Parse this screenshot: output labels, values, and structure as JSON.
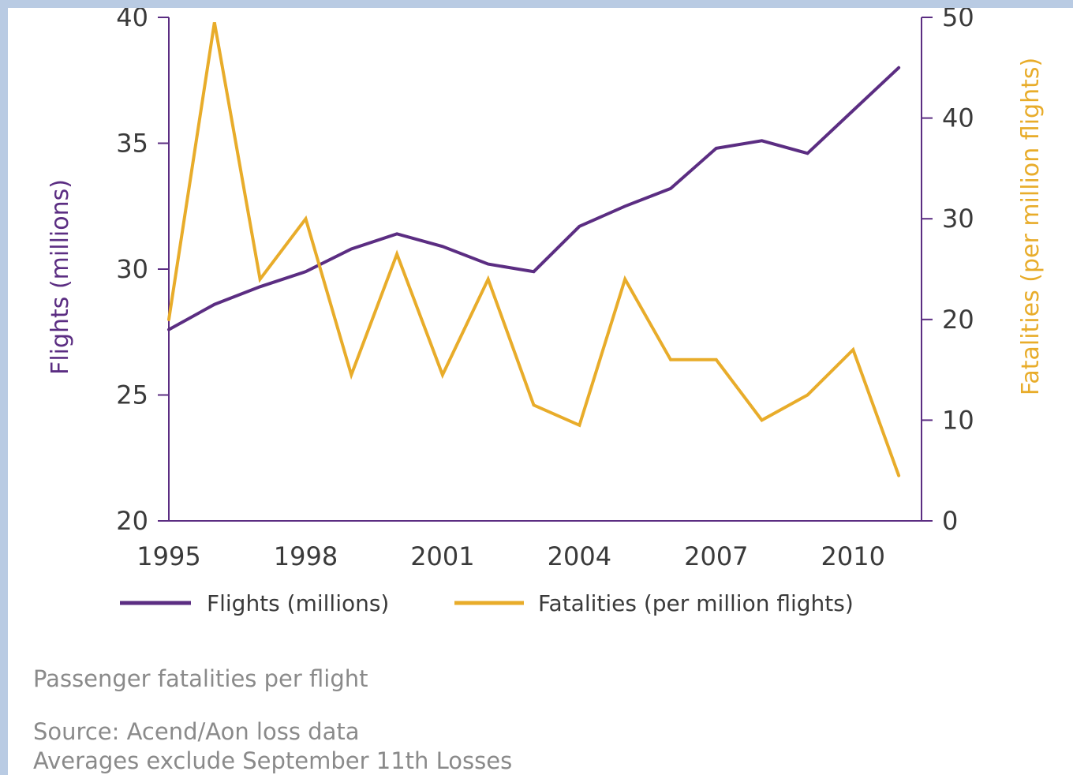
{
  "colors": {
    "flights": "#5b2d82",
    "fatalities": "#e8ac2a",
    "axis_left": "#5b2d82",
    "axis_right": "#5b2d82",
    "text": "#3a3a3a",
    "caption": "#8a8a8a"
  },
  "chart_data": {
    "type": "line",
    "title": "",
    "xlabel": "",
    "x": [
      1995,
      1996,
      1997,
      1998,
      1999,
      2000,
      2001,
      2002,
      2003,
      2004,
      2005,
      2006,
      2007,
      2008,
      2009,
      2010,
      2011
    ],
    "xticks": [
      "1995",
      "1998",
      "2001",
      "2004",
      "2007",
      "2010"
    ],
    "xlim": [
      1995,
      2011.5
    ],
    "ylabel_left": "Flights (millions)",
    "ylim_left": [
      20,
      40
    ],
    "yticks_left": [
      "20",
      "25",
      "30",
      "35",
      "40"
    ],
    "ylabel_right": "Fatalities (per million flights)",
    "ylim_right": [
      0,
      50
    ],
    "yticks_right": [
      "0",
      "10",
      "20",
      "30",
      "40",
      "50"
    ],
    "grid": false,
    "legend_placement": "bottom",
    "series": [
      {
        "name": "Flights (millions)",
        "axis": "left",
        "values": [
          27.6,
          28.6,
          29.3,
          29.9,
          30.8,
          31.4,
          30.9,
          30.2,
          29.9,
          31.7,
          32.5,
          33.2,
          34.8,
          35.1,
          34.6,
          36.3,
          38.0
        ]
      },
      {
        "name": "Fatalities (per million flights)",
        "axis": "right",
        "values": [
          20,
          49.5,
          24,
          30,
          14.5,
          26.5,
          14.5,
          24,
          11.5,
          9.5,
          24,
          16,
          16,
          10,
          12.5,
          17,
          4.5
        ]
      }
    ]
  },
  "caption": {
    "title": "Passenger fatalities per flight",
    "source": "Source: Acend/Aon loss data",
    "note": "Averages exclude September 11th Losses"
  }
}
